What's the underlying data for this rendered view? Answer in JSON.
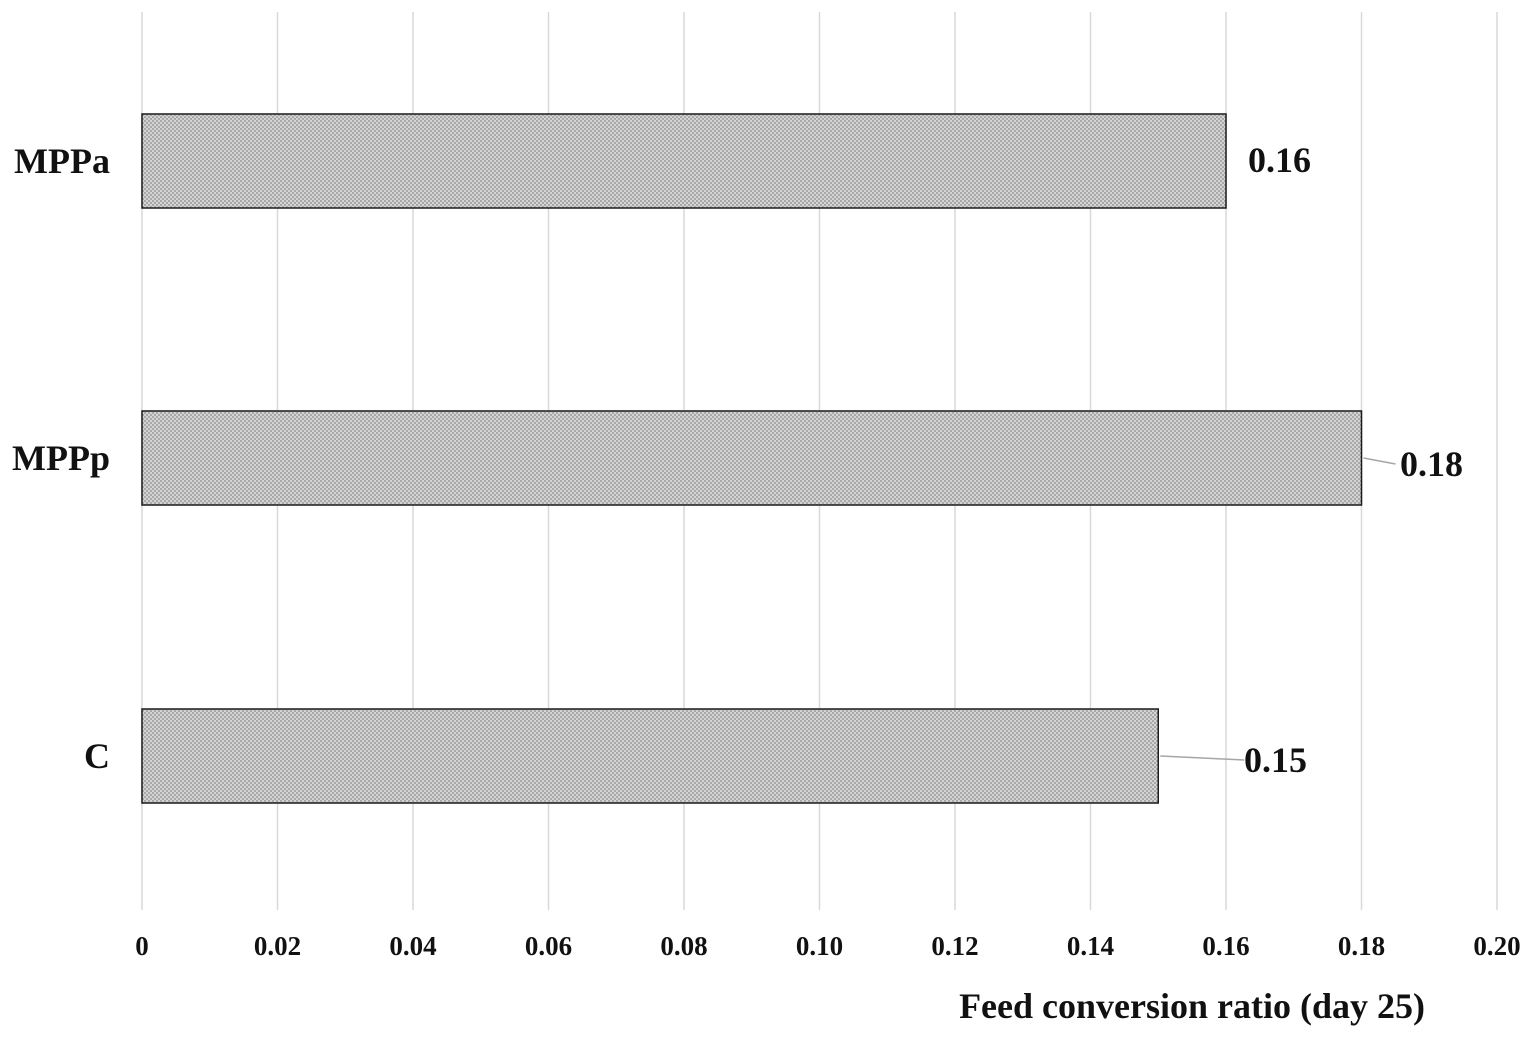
{
  "chart_data": {
    "type": "bar",
    "orientation": "horizontal",
    "categories": [
      "MPPa",
      "MPPp",
      "C"
    ],
    "values": [
      0.16,
      0.18,
      0.15
    ],
    "data_labels": [
      "0.16",
      "0.18",
      "0.15"
    ],
    "title": "",
    "xlabel": "Feed conversion ratio (day 25)",
    "ylabel": "",
    "xlim": [
      0,
      0.2
    ],
    "x_ticks": [
      0,
      0.02,
      0.04,
      0.06,
      0.08,
      0.1,
      0.12,
      0.14,
      0.16,
      0.18,
      0.2
    ],
    "x_tick_labels": [
      "0",
      "0.02",
      "0.04",
      "0.06",
      "0.08",
      "0.10",
      "0.12",
      "0.14",
      "0.16",
      "0.18",
      "0.20"
    ],
    "grid": "vertical",
    "legend": "none",
    "bar_fill": "#c8c8c8",
    "bar_pattern": "fine-checker",
    "bar_outline": "#1a1a1a",
    "gridline_color": "#d9d9d9",
    "text_color": "#111111"
  }
}
